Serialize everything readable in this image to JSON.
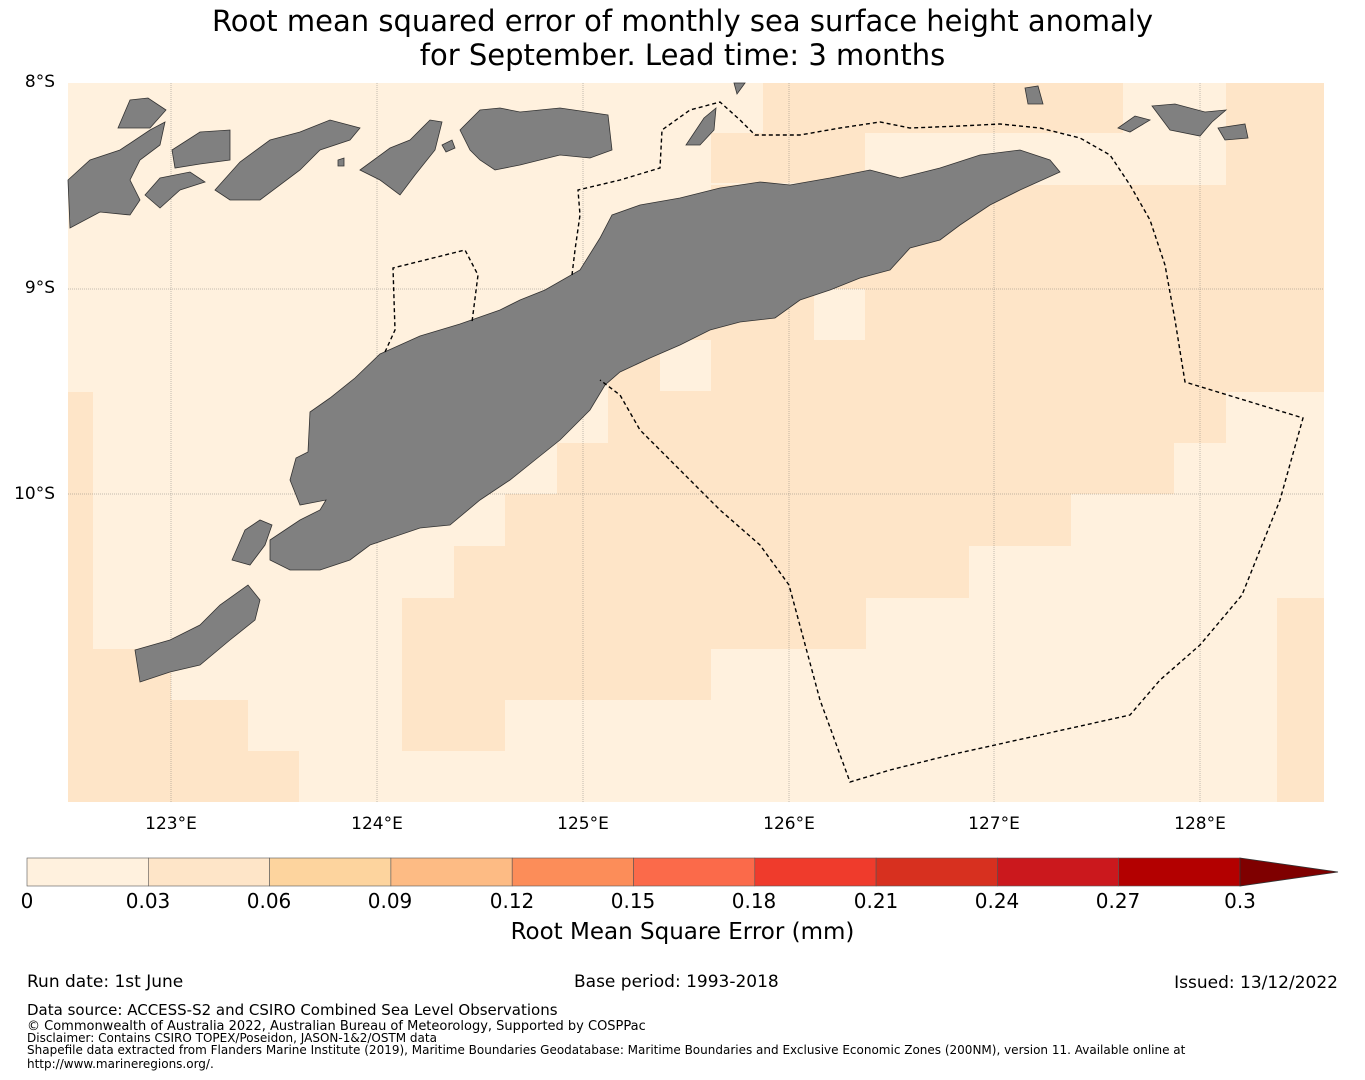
{
  "title": {
    "line1": "Root mean squared error of monthly sea surface height anomaly",
    "line2": "for September. Lead time: 3 months"
  },
  "map": {
    "lat_labels": [
      "8°S",
      "9°S",
      "10°S"
    ],
    "lon_labels": [
      "123°E",
      "124°E",
      "125°E",
      "126°E",
      "127°E",
      "128°E"
    ],
    "land_color": "#808080",
    "boundary_style": "dashed"
  },
  "colorbar": {
    "ticks": [
      "0",
      "0.03",
      "0.06",
      "0.09",
      "0.12",
      "0.15",
      "0.18",
      "0.21",
      "0.24",
      "0.27",
      "0.3"
    ],
    "colors": [
      "#fff1de",
      "#fee5c8",
      "#fdd49e",
      "#fdbb84",
      "#fc8d59",
      "#fb6a4a",
      "#ef3b2c",
      "#d7301f",
      "#cb181d",
      "#b30000",
      "#7f0000"
    ],
    "extend": "max",
    "label": "Root Mean Square Error (mm)"
  },
  "footer": {
    "run_date": "Run date: 1st June",
    "base_period": "Base period: 1993-2018",
    "issued": "Issued: 13/12/2022",
    "data_source": "Data source: ACCESS-S2 and CSIRO Combined Sea Level Observations",
    "copyright": "© Commonwealth of Australia 2022, Australian Bureau of Meteorology, Supported by COSPPac",
    "disclaimer": "Disclaimer: Contains CSIRO TOPEX/Poseidon, JASON-1&2/OSTM data",
    "shapefile": "Shapefile data extracted from Flanders Marine Institute (2019), Maritime Boundaries Geodatabase: Maritime Boundaries and Exclusive Economic Zones (200NM), version 11. Available online at",
    "url": "http://www.marineregions.org/."
  }
}
